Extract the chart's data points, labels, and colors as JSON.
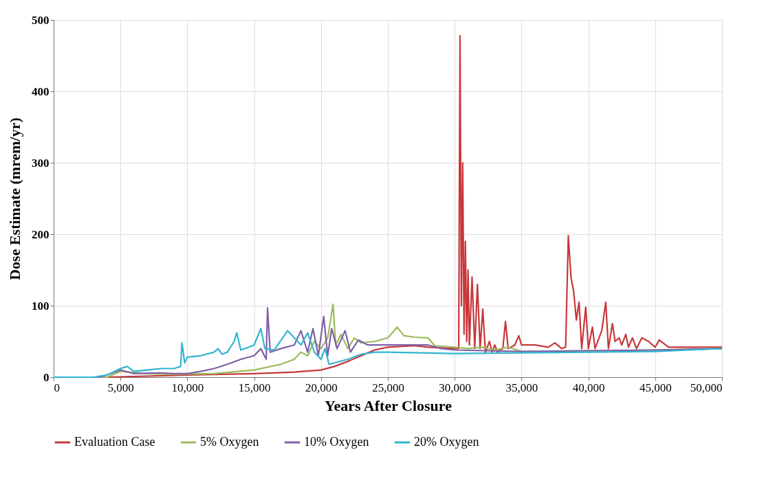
{
  "chart_data": {
    "type": "line",
    "xlabel": "Years After Closure",
    "ylabel": "Dose Estimate (mrem/yr)",
    "xlim": [
      0,
      50000
    ],
    "xticks": [
      0,
      {
        "value": 5000,
        "label": "5,000"
      },
      {
        "value": 10000,
        "label": "10,000"
      },
      {
        "value": 15000,
        "label": "15,000"
      },
      {
        "value": 20000,
        "label": "20,000"
      },
      {
        "value": 25000,
        "label": "25,000"
      },
      {
        "value": 30000,
        "label": "30,000"
      },
      {
        "value": 35000,
        "label": "35,000"
      },
      {
        "value": 40000,
        "label": "40,000"
      },
      {
        "value": 45000,
        "label": "45,000"
      },
      {
        "value": 50000,
        "label": "50,000"
      }
    ],
    "ylim": [
      0,
      500
    ],
    "yticks": [
      0,
      100,
      200,
      300,
      400,
      500
    ],
    "grid": true,
    "legend": "bottom",
    "marker": "none",
    "line_style": "solid",
    "series": [
      {
        "name": "Evaluation Case",
        "color": "#c8373a",
        "x": [
          0,
          4000,
          10000,
          15000,
          18000,
          20000,
          21000,
          22000,
          23000,
          24000,
          25000,
          27000,
          28000,
          30000,
          30300,
          30400,
          30500,
          30600,
          30700,
          30800,
          30900,
          31000,
          31100,
          31300,
          31500,
          31700,
          31900,
          32100,
          32300,
          32600,
          32800,
          33000,
          33200,
          33600,
          33800,
          34000,
          34500,
          34800,
          35000,
          36000,
          37000,
          37500,
          38000,
          38300,
          38500,
          38700,
          38900,
          39100,
          39300,
          39500,
          39800,
          40000,
          40300,
          40500,
          41000,
          41300,
          41500,
          41800,
          42000,
          42300,
          42500,
          42800,
          43000,
          43300,
          43600,
          44000,
          44500,
          45000,
          45300,
          46000,
          47000,
          50000
        ],
        "values": [
          0,
          0,
          3,
          5,
          7,
          10,
          15,
          22,
          30,
          38,
          42,
          44,
          42,
          40,
          40,
          478,
          100,
          300,
          60,
          190,
          50,
          150,
          45,
          140,
          40,
          130,
          40,
          95,
          35,
          50,
          35,
          45,
          35,
          40,
          78,
          40,
          45,
          58,
          45,
          45,
          42,
          48,
          40,
          42,
          198,
          140,
          120,
          80,
          105,
          40,
          98,
          40,
          70,
          40,
          65,
          105,
          40,
          75,
          50,
          55,
          45,
          60,
          42,
          55,
          40,
          55,
          50,
          42,
          52,
          42,
          42,
          42
        ]
      },
      {
        "name": "5% Oxygen",
        "color": "#9bbb59",
        "x": [
          0,
          4000,
          5000,
          7000,
          9000,
          12000,
          15000,
          17000,
          18000,
          18500,
          19000,
          19500,
          20000,
          20500,
          20900,
          21100,
          21500,
          22000,
          22500,
          23000,
          24000,
          25000,
          25700,
          26200,
          27000,
          28000,
          28500,
          30000,
          31000,
          32000,
          33000,
          34000,
          35000,
          40000,
          45000,
          50000
        ],
        "values": [
          0,
          0,
          8,
          5,
          4,
          5,
          10,
          18,
          25,
          35,
          30,
          50,
          40,
          55,
          102,
          45,
          60,
          40,
          55,
          48,
          50,
          55,
          70,
          58,
          56,
          55,
          44,
          42,
          40,
          42,
          38,
          42,
          36,
          37,
          38,
          40
        ]
      },
      {
        "name": "10% Oxygen",
        "color": "#7f5fa8",
        "x": [
          0,
          3500,
          5000,
          6000,
          8000,
          9000,
          10000,
          11000,
          12000,
          13000,
          14000,
          15000,
          15500,
          15900,
          16000,
          16200,
          17000,
          18000,
          18500,
          19000,
          19400,
          19800,
          20200,
          20500,
          20800,
          21200,
          21800,
          22200,
          22800,
          23500,
          25000,
          26000,
          28000,
          29000,
          30000,
          35000,
          40000,
          45000,
          50000
        ],
        "values": [
          0,
          0,
          10,
          5,
          6,
          5,
          5,
          8,
          12,
          18,
          25,
          30,
          40,
          25,
          97,
          35,
          40,
          45,
          65,
          35,
          68,
          30,
          85,
          30,
          68,
          40,
          65,
          35,
          52,
          45,
          45,
          45,
          45,
          40,
          38,
          36,
          37,
          38,
          40
        ]
      },
      {
        "name": "20% Oxygen",
        "color": "#2fb5d0",
        "x": [
          0,
          3000,
          4000,
          5000,
          5500,
          6000,
          7000,
          8000,
          9000,
          9500,
          9600,
          9800,
          10000,
          11000,
          12000,
          12300,
          12600,
          13000,
          13500,
          13700,
          14000,
          15000,
          15500,
          15800,
          16500,
          17500,
          18000,
          18500,
          19000,
          19500,
          20000,
          20300,
          20600,
          21000,
          22000,
          23000,
          24000,
          25000,
          30000,
          35000,
          40000,
          45000,
          50000
        ],
        "values": [
          0,
          0,
          3,
          12,
          15,
          8,
          10,
          12,
          12,
          15,
          48,
          20,
          28,
          30,
          35,
          40,
          32,
          35,
          50,
          62,
          38,
          45,
          68,
          40,
          38,
          65,
          55,
          45,
          62,
          35,
          25,
          40,
          18,
          20,
          25,
          32,
          35,
          35,
          33,
          34,
          35,
          36,
          40
        ]
      }
    ]
  }
}
